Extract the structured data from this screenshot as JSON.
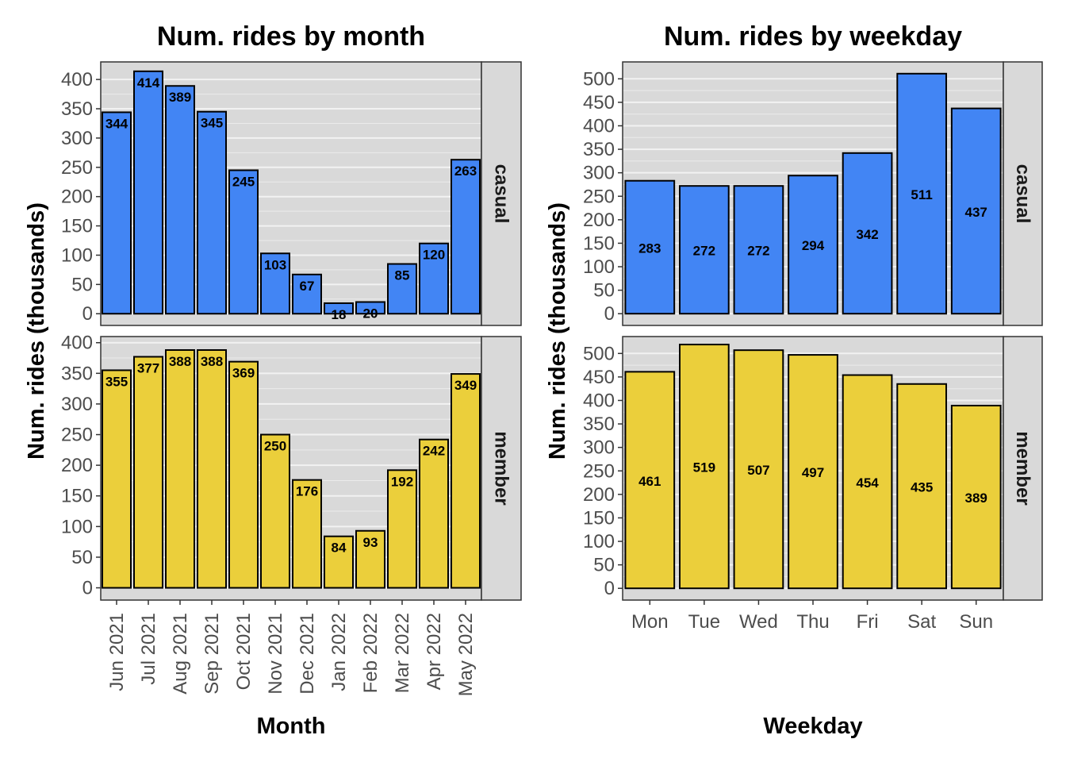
{
  "chart_data": [
    {
      "type": "bar",
      "title": "Num. rides by month",
      "xlabel": "Month",
      "ylabel": "Num. rides (thousands)",
      "categories": [
        "Jun 2021",
        "Jul 2021",
        "Aug 2021",
        "Sep 2021",
        "Oct 2021",
        "Nov 2021",
        "Dec 2021",
        "Jan 2022",
        "Feb 2022",
        "Mar 2022",
        "Apr 2022",
        "May 2022"
      ],
      "x_tick_rotation": "vertical",
      "grid": true,
      "facets": [
        {
          "name": "casual",
          "color": "#4285f4",
          "ylim": [
            -20,
            430
          ],
          "yticks": [
            0,
            50,
            100,
            150,
            200,
            250,
            300,
            350,
            400
          ],
          "values": [
            344,
            414,
            389,
            345,
            245,
            103,
            67,
            18,
            20,
            85,
            120,
            263
          ],
          "labels": [
            "344",
            "414",
            "389",
            "345",
            "245",
            "103",
            "67",
            "18",
            "20",
            "85",
            "120",
            "263"
          ]
        },
        {
          "name": "member",
          "color": "#ebcf3b",
          "ylim": [
            -20,
            410
          ],
          "yticks": [
            0,
            50,
            100,
            150,
            200,
            250,
            300,
            350,
            400
          ],
          "values": [
            355,
            377,
            388,
            388,
            369,
            250,
            176,
            84,
            93,
            192,
            242,
            349
          ],
          "labels": [
            "355",
            "377",
            "388",
            "388",
            "369",
            "250",
            "176",
            "84",
            "93",
            "192",
            "242",
            "349"
          ]
        }
      ]
    },
    {
      "type": "bar",
      "title": "Num. rides by weekday",
      "xlabel": "Weekday",
      "ylabel": "Num. rides (thousands)",
      "categories": [
        "Mon",
        "Tue",
        "Wed",
        "Thu",
        "Fri",
        "Sat",
        "Sun"
      ],
      "x_tick_rotation": "horizontal",
      "grid": true,
      "facets": [
        {
          "name": "casual",
          "color": "#4285f4",
          "ylim": [
            -25,
            536
          ],
          "yticks": [
            0,
            50,
            100,
            150,
            200,
            250,
            300,
            350,
            400,
            450,
            500
          ],
          "values": [
            283,
            272,
            272,
            294,
            342,
            511,
            437
          ],
          "labels": [
            "283",
            "272",
            "272",
            "294",
            "342",
            "511",
            "437"
          ]
        },
        {
          "name": "member",
          "color": "#ebcf3b",
          "ylim": [
            -25,
            536
          ],
          "yticks": [
            0,
            50,
            100,
            150,
            200,
            250,
            300,
            350,
            400,
            450,
            500
          ],
          "values": [
            461,
            519,
            507,
            497,
            454,
            435,
            389
          ],
          "labels": [
            "461",
            "519",
            "507",
            "497",
            "454",
            "435",
            "389"
          ]
        }
      ]
    }
  ]
}
